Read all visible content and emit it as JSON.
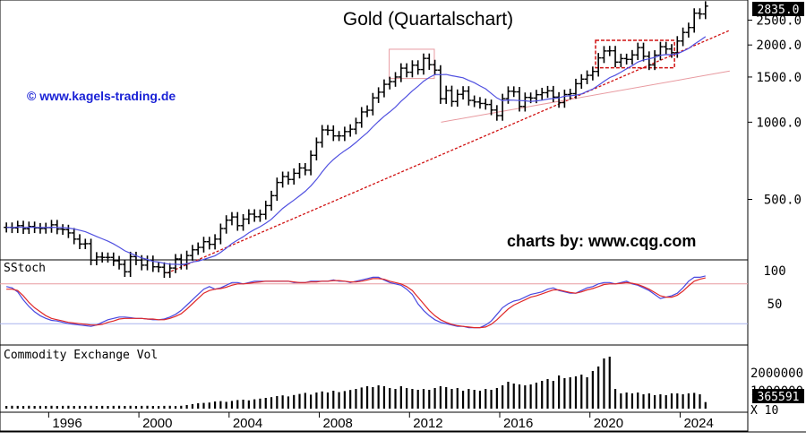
{
  "chart_data": {
    "type": "bar",
    "title": "Gold (Quartalschart)",
    "watermark_left": "© www.kagels-trading.de",
    "watermark_right": "charts by: www.cqg.com",
    "last_price_label": "2835.0",
    "price_scale": "log",
    "ylim": [
      300,
      2900
    ],
    "y_ticks": [
      "2500.0",
      "2000.0",
      "1500.0",
      "1000.0",
      "500.0"
    ],
    "x_ticks": [
      "1996",
      "2000",
      "2004",
      "2008",
      "2012",
      "2016",
      "2020",
      "2024"
    ],
    "x_range": [
      "1994 Q1",
      "2026 Q4"
    ],
    "quarters": [
      "1994Q1",
      "1994Q2",
      "1994Q3",
      "1994Q4",
      "1995Q1",
      "1995Q2",
      "1995Q3",
      "1995Q4",
      "1996Q1",
      "1996Q2",
      "1996Q3",
      "1996Q4",
      "1997Q1",
      "1997Q2",
      "1997Q3",
      "1997Q4",
      "1998Q1",
      "1998Q2",
      "1998Q3",
      "1998Q4",
      "1999Q1",
      "1999Q2",
      "1999Q3",
      "1999Q4",
      "2000Q1",
      "2000Q2",
      "2000Q3",
      "2000Q4",
      "2001Q1",
      "2001Q2",
      "2001Q3",
      "2001Q4",
      "2002Q1",
      "2002Q2",
      "2002Q3",
      "2002Q4",
      "2003Q1",
      "2003Q2",
      "2003Q3",
      "2003Q4",
      "2004Q1",
      "2004Q2",
      "2004Q3",
      "2004Q4",
      "2005Q1",
      "2005Q2",
      "2005Q3",
      "2005Q4",
      "2006Q1",
      "2006Q2",
      "2006Q3",
      "2006Q4",
      "2007Q1",
      "2007Q2",
      "2007Q3",
      "2007Q4",
      "2008Q1",
      "2008Q2",
      "2008Q3",
      "2008Q4",
      "2009Q1",
      "2009Q2",
      "2009Q3",
      "2009Q4",
      "2010Q1",
      "2010Q2",
      "2010Q3",
      "2010Q4",
      "2011Q1",
      "2011Q2",
      "2011Q3",
      "2011Q4",
      "2012Q1",
      "2012Q2",
      "2012Q3",
      "2012Q4",
      "2013Q1",
      "2013Q2",
      "2013Q3",
      "2013Q4",
      "2014Q1",
      "2014Q2",
      "2014Q3",
      "2014Q4",
      "2015Q1",
      "2015Q2",
      "2015Q3",
      "2015Q4",
      "2016Q1",
      "2016Q2",
      "2016Q3",
      "2016Q4",
      "2017Q1",
      "2017Q2",
      "2017Q3",
      "2017Q4",
      "2018Q1",
      "2018Q2",
      "2018Q3",
      "2018Q4",
      "2019Q1",
      "2019Q2",
      "2019Q3",
      "2019Q4",
      "2020Q1",
      "2020Q2",
      "2020Q3",
      "2020Q4",
      "2021Q1",
      "2021Q2",
      "2021Q3",
      "2021Q4",
      "2022Q1",
      "2022Q2",
      "2022Q3",
      "2022Q4",
      "2023Q1",
      "2023Q2",
      "2023Q3",
      "2023Q4",
      "2024Q1",
      "2024Q2",
      "2024Q3",
      "2024Q4",
      "2025Q1"
    ],
    "close": [
      389,
      387,
      395,
      384,
      392,
      387,
      385,
      388,
      398,
      383,
      381,
      370,
      350,
      335,
      336,
      290,
      298,
      297,
      297,
      288,
      279,
      261,
      299,
      290,
      277,
      289,
      273,
      272,
      259,
      270,
      293,
      279,
      302,
      318,
      325,
      342,
      334,
      350,
      385,
      415,
      427,
      395,
      419,
      438,
      428,
      437,
      473,
      517,
      582,
      614,
      598,
      632,
      663,
      650,
      743,
      834,
      933,
      930,
      884,
      884,
      919,
      939,
      996,
      1096,
      1113,
      1244,
      1309,
      1405,
      1439,
      1500,
      1624,
      1566,
      1668,
      1604,
      1773,
      1675,
      1596,
      1234,
      1328,
      1204,
      1284,
      1322,
      1216,
      1199,
      1183,
      1172,
      1115,
      1061,
      1235,
      1320,
      1313,
      1152,
      1249,
      1242,
      1280,
      1303,
      1325,
      1253,
      1192,
      1282,
      1292,
      1413,
      1472,
      1523,
      1577,
      1781,
      1895,
      1898,
      1715,
      1770,
      1757,
      1829,
      1954,
      1807,
      1672,
      1826,
      1969,
      1929,
      1866,
      2072,
      2238,
      2339,
      2660,
      2641,
      2835
    ],
    "series": [
      {
        "name": "SStoch",
        "ylim": [
          0,
          100
        ],
        "y_ticks": [
          "100",
          "50"
        ],
        "upper_line": 80,
        "lower_line": 20,
        "k": [
          76,
          74,
          68,
          56,
          46,
          38,
          32,
          28,
          25,
          24,
          22,
          20,
          19,
          18,
          17,
          16,
          18,
          22,
          26,
          28,
          30,
          30,
          29,
          28,
          28,
          27,
          26,
          26,
          27,
          30,
          34,
          40,
          48,
          56,
          64,
          72,
          76,
          72,
          74,
          78,
          82,
          82,
          80,
          82,
          84,
          84,
          84,
          84,
          84,
          84,
          84,
          82,
          82,
          82,
          84,
          84,
          84,
          84,
          86,
          84,
          84,
          82,
          84,
          86,
          88,
          90,
          90,
          86,
          82,
          80,
          78,
          72,
          64,
          50,
          40,
          32,
          26,
          22,
          20,
          18,
          16,
          16,
          14,
          14,
          14,
          18,
          24,
          34,
          44,
          50,
          54,
          56,
          60,
          64,
          66,
          68,
          72,
          74,
          70,
          68,
          66,
          66,
          70,
          74,
          76,
          80,
          82,
          82,
          80,
          82,
          84,
          80,
          78,
          74,
          70,
          64,
          58,
          60,
          62,
          66,
          74,
          84,
          90,
          90,
          92
        ],
        "d": [
          72,
          72,
          70,
          62,
          52,
          44,
          38,
          32,
          28,
          26,
          24,
          22,
          21,
          20,
          19,
          18,
          18,
          19,
          22,
          24,
          27,
          28,
          28,
          28,
          28,
          27,
          27,
          26,
          26,
          28,
          31,
          35,
          42,
          50,
          58,
          66,
          70,
          72,
          73,
          75,
          78,
          80,
          80,
          81,
          82,
          83,
          84,
          84,
          84,
          84,
          84,
          83,
          82,
          82,
          83,
          83,
          84,
          84,
          85,
          85,
          84,
          83,
          83,
          84,
          86,
          88,
          88,
          87,
          84,
          82,
          80,
          76,
          70,
          60,
          50,
          40,
          32,
          26,
          22,
          19,
          17,
          16,
          15,
          14,
          14,
          15,
          19,
          26,
          34,
          42,
          48,
          52,
          56,
          60,
          62,
          65,
          68,
          71,
          71,
          69,
          67,
          66,
          68,
          71,
          73,
          76,
          79,
          80,
          80,
          81,
          82,
          81,
          79,
          76,
          72,
          67,
          62,
          60,
          60,
          63,
          69,
          77,
          84,
          87,
          89
        ]
      },
      {
        "name": "Commodity Exchange Vol",
        "ylim": [
          0,
          3000000
        ],
        "y_ticks": [
          "2000000",
          "1000000"
        ],
        "last_label": "365591",
        "unit_label": "X 10",
        "values": [
          150000,
          160000,
          155000,
          150000,
          160000,
          150000,
          155000,
          150000,
          160000,
          150000,
          155000,
          160000,
          150000,
          155000,
          150000,
          160000,
          150000,
          155000,
          150000,
          155000,
          160000,
          150000,
          160000,
          150000,
          155000,
          160000,
          150000,
          150000,
          155000,
          160000,
          150000,
          160000,
          200000,
          250000,
          300000,
          320000,
          340000,
          400000,
          420000,
          380000,
          430000,
          480000,
          500000,
          460000,
          520000,
          560000,
          600000,
          640000,
          700000,
          740000,
          680000,
          760000,
          820000,
          880000,
          780000,
          900000,
          960000,
          900000,
          1000000,
          920000,
          980000,
          1040000,
          1100000,
          1180000,
          1250000,
          1200000,
          1300000,
          1250000,
          1150000,
          1100000,
          1250000,
          1150000,
          1100000,
          1050000,
          1100000,
          1050000,
          1150000,
          1250000,
          1200000,
          1100000,
          1150000,
          1000000,
          1100000,
          1050000,
          1000000,
          1100000,
          1050000,
          1150000,
          1300000,
          1500000,
          1400000,
          1350000,
          1300000,
          1350000,
          1450000,
          1550000,
          1650000,
          1550000,
          1850000,
          1700000,
          1750000,
          1800000,
          1900000,
          1750000,
          2100000,
          2350000,
          2800000,
          2900000,
          1100000,
          850000,
          900000,
          850000,
          900000,
          800000,
          850000,
          750000,
          800000,
          750000,
          850000,
          850000,
          800000,
          850000,
          880000,
          800000,
          365591
        ]
      }
    ],
    "overlays": [
      "moving average (blue)",
      "support trendline (red, dotted)",
      "rectangle 2011–2013 (pink)",
      "rectangle 2020–2023 (red, dashed)"
    ]
  }
}
